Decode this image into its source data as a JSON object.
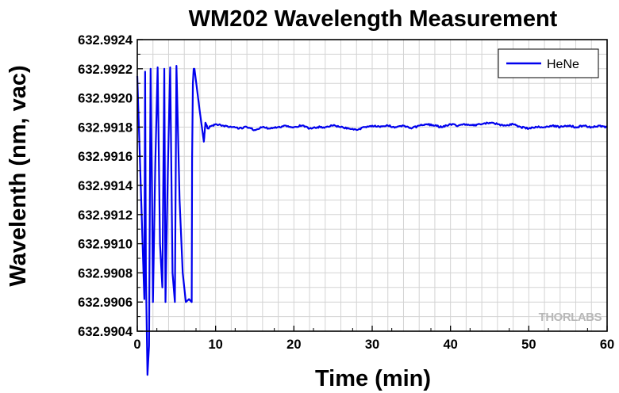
{
  "chart_data": {
    "type": "line",
    "title": "WM202 Wavelength Measurement",
    "xlabel": "Time (min)",
    "ylabel": "Wavelenth (nm, vac)",
    "xlim": [
      0,
      60
    ],
    "ylim": [
      632.9904,
      632.9924
    ],
    "xticks": [
      "0",
      "10",
      "20",
      "30",
      "40",
      "50",
      "60"
    ],
    "yticks": [
      "632.9904",
      "632.9906",
      "632.9908",
      "632.9910",
      "632.9912",
      "632.9914",
      "632.9916",
      "632.9918",
      "632.9920",
      "632.9922",
      "632.9924"
    ],
    "grid": true,
    "legend_position": "top-right",
    "series": [
      {
        "name": "HeNe",
        "color": "#0000ee",
        "x": [
          0,
          0.9,
          1,
          1.1,
          1.3,
          1.5,
          1.7,
          1.9,
          2.0,
          2.3,
          2.6,
          2.9,
          3.2,
          3.45,
          3.6,
          3.9,
          4.2,
          4.5,
          4.8,
          5.0,
          5.4,
          5.8,
          6.2,
          6.6,
          6.95,
          7.0,
          7.1,
          7.2,
          7.3,
          8.0,
          8.5,
          8.7,
          9.0,
          9.5,
          10,
          11,
          12,
          13,
          14,
          15,
          16,
          17,
          18,
          19,
          20,
          21,
          22,
          23,
          24,
          25,
          26,
          27,
          28,
          29,
          30,
          31,
          32,
          33,
          34,
          35,
          36,
          37,
          38,
          39,
          40,
          41,
          42,
          43,
          44,
          45,
          46,
          47,
          48,
          49,
          50,
          51,
          52,
          53,
          54,
          55,
          56,
          57,
          58,
          59,
          60
        ],
        "y": [
          632.99215,
          632.99062,
          632.99218,
          632.9908,
          632.9901,
          632.9903,
          632.9922,
          632.99125,
          632.9906,
          632.99155,
          632.99221,
          632.991,
          632.9907,
          632.9922,
          632.9906,
          632.9915,
          632.99221,
          632.9908,
          632.9906,
          632.99222,
          632.9913,
          632.9908,
          632.9906,
          632.99062,
          632.9906,
          632.99158,
          632.9921,
          632.9922,
          632.9922,
          632.9919,
          632.9917,
          632.99183,
          632.99179,
          632.99181,
          632.99182,
          632.99181,
          632.9918,
          632.99179,
          632.9918,
          632.99178,
          632.9918,
          632.99179,
          632.9918,
          632.99181,
          632.9918,
          632.99181,
          632.99179,
          632.9918,
          632.9918,
          632.99181,
          632.9918,
          632.99179,
          632.99178,
          632.9918,
          632.99181,
          632.9918,
          632.99181,
          632.9918,
          632.99181,
          632.99179,
          632.99181,
          632.99182,
          632.99181,
          632.9918,
          632.99182,
          632.99181,
          632.99182,
          632.99181,
          632.99182,
          632.99183,
          632.99182,
          632.99181,
          632.99182,
          632.9918,
          632.99179,
          632.9918,
          632.9918,
          632.99181,
          632.9918,
          632.99181,
          632.9918,
          632.99181,
          632.9918,
          632.99181,
          632.9918
        ]
      }
    ]
  },
  "watermark": "THORLABS"
}
